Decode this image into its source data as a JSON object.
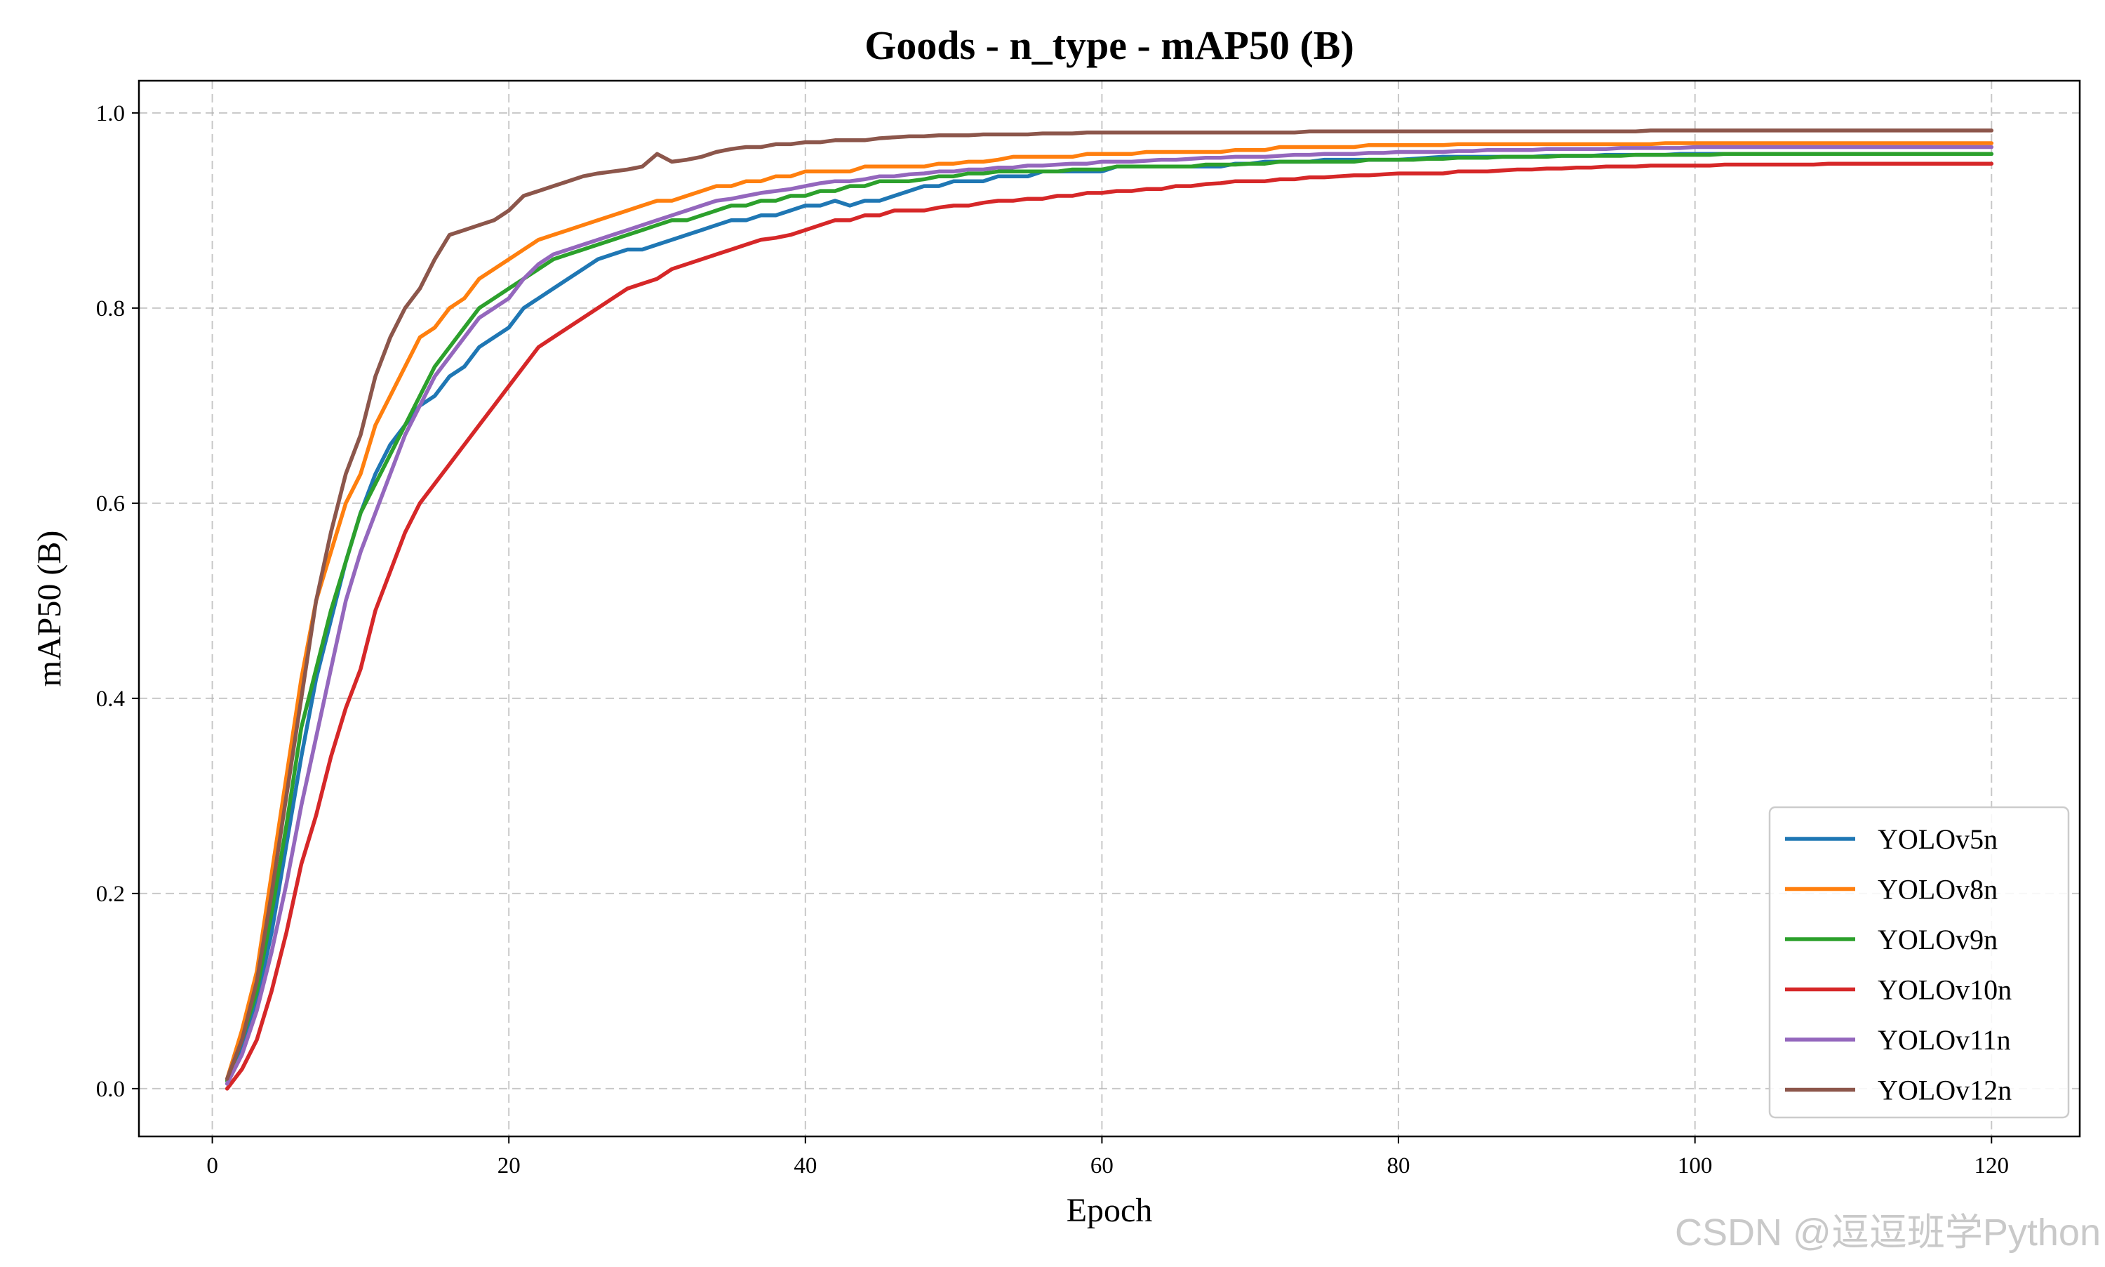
{
  "chart_data": {
    "type": "line",
    "title": "Goods - n_type - mAP50 (B)",
    "xlabel": "Epoch",
    "ylabel": "mAP50 (B)",
    "xlim": [
      -4.95,
      125.95
    ],
    "ylim": [
      -0.049,
      1.033
    ],
    "xticks": [
      0,
      20,
      40,
      60,
      80,
      100,
      120
    ],
    "xtick_labels": [
      "0",
      "20",
      "40",
      "60",
      "80",
      "100",
      "120"
    ],
    "yticks": [
      0.0,
      0.2,
      0.4,
      0.6,
      0.8,
      1.0
    ],
    "ytick_labels": [
      "0.0",
      "0.2",
      "0.4",
      "0.6",
      "0.8",
      "1.0"
    ],
    "grid": true,
    "legend_position": "lower-right",
    "x": [
      1,
      2,
      3,
      4,
      5,
      6,
      7,
      8,
      9,
      10,
      11,
      12,
      13,
      14,
      15,
      16,
      17,
      18,
      19,
      20,
      21,
      22,
      23,
      24,
      25,
      26,
      27,
      28,
      29,
      30,
      31,
      32,
      33,
      34,
      35,
      36,
      37,
      38,
      39,
      40,
      41,
      42,
      43,
      44,
      45,
      46,
      47,
      48,
      49,
      50,
      51,
      52,
      53,
      54,
      55,
      56,
      57,
      58,
      59,
      60,
      61,
      62,
      63,
      64,
      65,
      66,
      67,
      68,
      69,
      70,
      71,
      72,
      73,
      74,
      75,
      76,
      77,
      78,
      79,
      80,
      81,
      82,
      83,
      84,
      85,
      86,
      87,
      88,
      89,
      90,
      91,
      92,
      93,
      94,
      95,
      96,
      97,
      98,
      99,
      100,
      101,
      102,
      103,
      104,
      105,
      106,
      107,
      108,
      109,
      110,
      111,
      112,
      113,
      114,
      115,
      116,
      117,
      118,
      119,
      120
    ],
    "series": [
      {
        "name": "YOLOv5n",
        "color": "#1f77b4",
        "values": [
          0.005,
          0.04,
          0.09,
          0.16,
          0.25,
          0.34,
          0.42,
          0.48,
          0.54,
          0.59,
          0.63,
          0.66,
          0.68,
          0.7,
          0.71,
          0.73,
          0.74,
          0.76,
          0.77,
          0.78,
          0.8,
          0.81,
          0.82,
          0.83,
          0.84,
          0.85,
          0.855,
          0.86,
          0.86,
          0.865,
          0.87,
          0.875,
          0.88,
          0.885,
          0.89,
          0.89,
          0.895,
          0.895,
          0.9,
          0.905,
          0.905,
          0.91,
          0.905,
          0.91,
          0.91,
          0.915,
          0.92,
          0.925,
          0.925,
          0.93,
          0.93,
          0.93,
          0.935,
          0.935,
          0.935,
          0.94,
          0.94,
          0.94,
          0.94,
          0.94,
          0.945,
          0.945,
          0.945,
          0.945,
          0.945,
          0.945,
          0.945,
          0.945,
          0.948,
          0.948,
          0.95,
          0.95,
          0.95,
          0.95,
          0.952,
          0.952,
          0.952,
          0.952,
          0.952,
          0.952,
          0.953,
          0.954,
          0.955,
          0.955,
          0.955,
          0.955,
          0.955,
          0.955,
          0.955,
          0.956,
          0.956,
          0.956,
          0.956,
          0.957,
          0.957,
          0.957,
          0.957,
          0.957,
          0.958,
          0.958,
          0.958,
          0.958,
          0.958,
          0.958,
          0.958,
          0.958,
          0.958,
          0.958,
          0.958,
          0.958,
          0.958,
          0.958,
          0.958,
          0.958,
          0.958,
          0.958,
          0.958,
          0.958,
          0.958,
          0.958
        ]
      },
      {
        "name": "YOLOv8n",
        "color": "#ff7f0e",
        "values": [
          0.01,
          0.06,
          0.12,
          0.22,
          0.32,
          0.42,
          0.5,
          0.55,
          0.6,
          0.63,
          0.68,
          0.71,
          0.74,
          0.77,
          0.78,
          0.8,
          0.81,
          0.83,
          0.84,
          0.85,
          0.86,
          0.87,
          0.875,
          0.88,
          0.885,
          0.89,
          0.895,
          0.9,
          0.905,
          0.91,
          0.91,
          0.915,
          0.92,
          0.925,
          0.925,
          0.93,
          0.93,
          0.935,
          0.935,
          0.94,
          0.94,
          0.94,
          0.94,
          0.945,
          0.945,
          0.945,
          0.945,
          0.945,
          0.948,
          0.948,
          0.95,
          0.95,
          0.952,
          0.955,
          0.955,
          0.955,
          0.955,
          0.955,
          0.958,
          0.958,
          0.958,
          0.958,
          0.96,
          0.96,
          0.96,
          0.96,
          0.96,
          0.96,
          0.962,
          0.962,
          0.962,
          0.965,
          0.965,
          0.965,
          0.965,
          0.965,
          0.965,
          0.967,
          0.967,
          0.967,
          0.967,
          0.967,
          0.967,
          0.968,
          0.968,
          0.968,
          0.968,
          0.968,
          0.968,
          0.968,
          0.968,
          0.968,
          0.968,
          0.968,
          0.968,
          0.968,
          0.968,
          0.969,
          0.969,
          0.969,
          0.969,
          0.969,
          0.969,
          0.969,
          0.969,
          0.969,
          0.969,
          0.969,
          0.969,
          0.969,
          0.969,
          0.969,
          0.969,
          0.969,
          0.969,
          0.969,
          0.969,
          0.969,
          0.969,
          0.969
        ]
      },
      {
        "name": "YOLOv9n",
        "color": "#2ca02c",
        "values": [
          0.008,
          0.05,
          0.1,
          0.18,
          0.27,
          0.37,
          0.43,
          0.49,
          0.54,
          0.59,
          0.62,
          0.65,
          0.68,
          0.71,
          0.74,
          0.76,
          0.78,
          0.8,
          0.81,
          0.82,
          0.83,
          0.84,
          0.85,
          0.855,
          0.86,
          0.865,
          0.87,
          0.875,
          0.88,
          0.885,
          0.89,
          0.89,
          0.895,
          0.9,
          0.905,
          0.905,
          0.91,
          0.91,
          0.915,
          0.915,
          0.92,
          0.92,
          0.925,
          0.925,
          0.93,
          0.93,
          0.93,
          0.932,
          0.935,
          0.935,
          0.938,
          0.938,
          0.94,
          0.94,
          0.94,
          0.94,
          0.94,
          0.942,
          0.942,
          0.942,
          0.945,
          0.945,
          0.945,
          0.945,
          0.945,
          0.945,
          0.947,
          0.947,
          0.947,
          0.948,
          0.948,
          0.95,
          0.95,
          0.95,
          0.95,
          0.95,
          0.95,
          0.952,
          0.952,
          0.952,
          0.952,
          0.953,
          0.953,
          0.954,
          0.954,
          0.954,
          0.955,
          0.955,
          0.955,
          0.955,
          0.956,
          0.956,
          0.956,
          0.956,
          0.956,
          0.957,
          0.957,
          0.957,
          0.957,
          0.957,
          0.957,
          0.958,
          0.958,
          0.958,
          0.958,
          0.958,
          0.958,
          0.958,
          0.958,
          0.958,
          0.958,
          0.958,
          0.958,
          0.958,
          0.958,
          0.958,
          0.958,
          0.958,
          0.958,
          0.958
        ]
      },
      {
        "name": "YOLOv10n",
        "color": "#d62728",
        "values": [
          0.0,
          0.02,
          0.05,
          0.1,
          0.16,
          0.23,
          0.28,
          0.34,
          0.39,
          0.43,
          0.49,
          0.53,
          0.57,
          0.6,
          0.62,
          0.64,
          0.66,
          0.68,
          0.7,
          0.72,
          0.74,
          0.76,
          0.77,
          0.78,
          0.79,
          0.8,
          0.81,
          0.82,
          0.825,
          0.83,
          0.84,
          0.845,
          0.85,
          0.855,
          0.86,
          0.865,
          0.87,
          0.872,
          0.875,
          0.88,
          0.885,
          0.89,
          0.89,
          0.895,
          0.895,
          0.9,
          0.9,
          0.9,
          0.903,
          0.905,
          0.905,
          0.908,
          0.91,
          0.91,
          0.912,
          0.912,
          0.915,
          0.915,
          0.918,
          0.918,
          0.92,
          0.92,
          0.922,
          0.922,
          0.925,
          0.925,
          0.927,
          0.928,
          0.93,
          0.93,
          0.93,
          0.932,
          0.932,
          0.934,
          0.934,
          0.935,
          0.936,
          0.936,
          0.937,
          0.938,
          0.938,
          0.938,
          0.938,
          0.94,
          0.94,
          0.94,
          0.941,
          0.942,
          0.942,
          0.943,
          0.943,
          0.944,
          0.944,
          0.945,
          0.945,
          0.945,
          0.946,
          0.946,
          0.946,
          0.946,
          0.946,
          0.947,
          0.947,
          0.947,
          0.947,
          0.947,
          0.947,
          0.947,
          0.948,
          0.948,
          0.948,
          0.948,
          0.948,
          0.948,
          0.948,
          0.948,
          0.948,
          0.948,
          0.948,
          0.948
        ]
      },
      {
        "name": "YOLOv11n",
        "color": "#9467bd",
        "values": [
          0.005,
          0.035,
          0.08,
          0.14,
          0.21,
          0.29,
          0.36,
          0.43,
          0.5,
          0.55,
          0.59,
          0.63,
          0.67,
          0.7,
          0.73,
          0.75,
          0.77,
          0.79,
          0.8,
          0.81,
          0.83,
          0.845,
          0.855,
          0.86,
          0.865,
          0.87,
          0.875,
          0.88,
          0.885,
          0.89,
          0.895,
          0.9,
          0.905,
          0.91,
          0.912,
          0.915,
          0.918,
          0.92,
          0.922,
          0.925,
          0.928,
          0.93,
          0.93,
          0.932,
          0.935,
          0.935,
          0.937,
          0.938,
          0.94,
          0.94,
          0.942,
          0.942,
          0.944,
          0.944,
          0.946,
          0.946,
          0.947,
          0.948,
          0.948,
          0.95,
          0.95,
          0.95,
          0.951,
          0.952,
          0.952,
          0.953,
          0.954,
          0.954,
          0.955,
          0.955,
          0.955,
          0.956,
          0.957,
          0.957,
          0.958,
          0.958,
          0.958,
          0.959,
          0.959,
          0.96,
          0.96,
          0.96,
          0.96,
          0.961,
          0.961,
          0.962,
          0.962,
          0.962,
          0.962,
          0.963,
          0.963,
          0.963,
          0.963,
          0.963,
          0.964,
          0.964,
          0.964,
          0.964,
          0.964,
          0.965,
          0.965,
          0.965,
          0.965,
          0.965,
          0.965,
          0.965,
          0.965,
          0.965,
          0.965,
          0.965,
          0.965,
          0.965,
          0.965,
          0.965,
          0.965,
          0.965,
          0.965,
          0.965,
          0.965,
          0.965
        ]
      },
      {
        "name": "YOLOv12n",
        "color": "#8c564b",
        "values": [
          0.01,
          0.05,
          0.11,
          0.2,
          0.3,
          0.4,
          0.5,
          0.57,
          0.63,
          0.67,
          0.73,
          0.77,
          0.8,
          0.82,
          0.85,
          0.875,
          0.88,
          0.885,
          0.89,
          0.9,
          0.915,
          0.92,
          0.925,
          0.93,
          0.935,
          0.938,
          0.94,
          0.942,
          0.945,
          0.958,
          0.95,
          0.952,
          0.955,
          0.96,
          0.963,
          0.965,
          0.965,
          0.968,
          0.968,
          0.97,
          0.97,
          0.972,
          0.972,
          0.972,
          0.974,
          0.975,
          0.976,
          0.976,
          0.977,
          0.977,
          0.977,
          0.978,
          0.978,
          0.978,
          0.978,
          0.979,
          0.979,
          0.979,
          0.98,
          0.98,
          0.98,
          0.98,
          0.98,
          0.98,
          0.98,
          0.98,
          0.98,
          0.98,
          0.98,
          0.98,
          0.98,
          0.98,
          0.98,
          0.981,
          0.981,
          0.981,
          0.981,
          0.981,
          0.981,
          0.981,
          0.981,
          0.981,
          0.981,
          0.981,
          0.981,
          0.981,
          0.981,
          0.981,
          0.981,
          0.981,
          0.981,
          0.981,
          0.981,
          0.981,
          0.981,
          0.981,
          0.982,
          0.982,
          0.982,
          0.982,
          0.982,
          0.982,
          0.982,
          0.982,
          0.982,
          0.982,
          0.982,
          0.982,
          0.982,
          0.982,
          0.982,
          0.982,
          0.982,
          0.982,
          0.982,
          0.982,
          0.982,
          0.982,
          0.982,
          0.982
        ]
      }
    ]
  },
  "watermark": "CSDN @逗逗班学Python"
}
